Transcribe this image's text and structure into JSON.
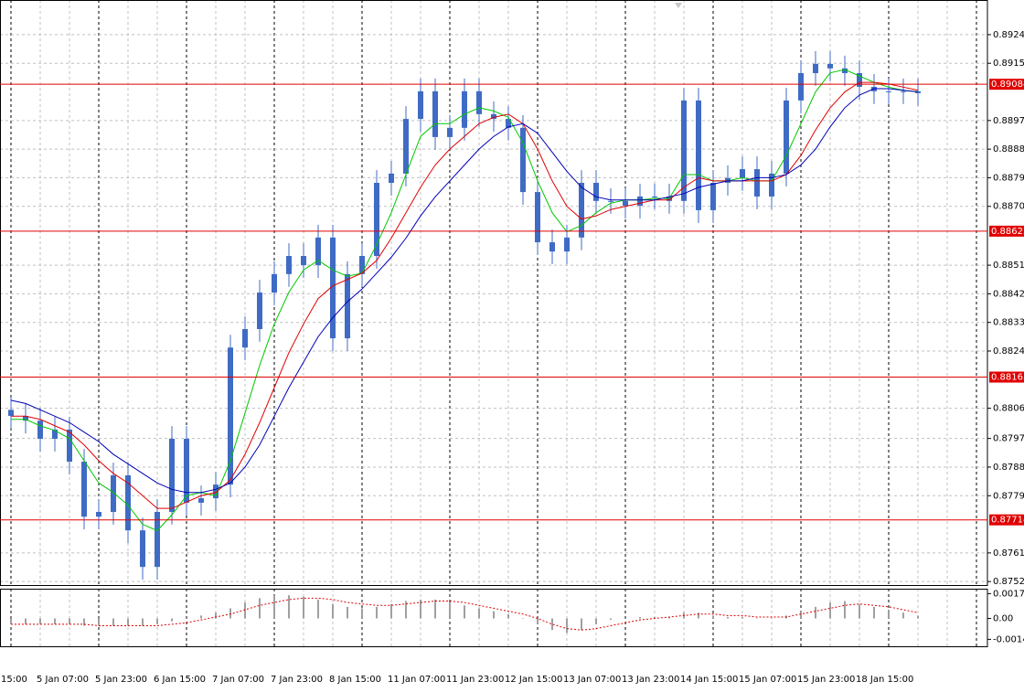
{
  "chart_data": {
    "type": "candlestick",
    "categories": [
      "15:00",
      null,
      null,
      null,
      "5 Jan 07:00",
      null,
      null,
      null,
      "5 Jan 23:00",
      null,
      null,
      null,
      "6 Jan 15:00",
      null,
      null,
      null,
      "7 Jan 07:00",
      null,
      null,
      null,
      "7 Jan 23:00",
      null,
      null,
      null,
      "8 Jan 15:00",
      null,
      null,
      null,
      "11 Jan 07:00",
      null,
      null,
      null,
      "11 Jan 23:00",
      null,
      null,
      null,
      "12 Jan 15:00",
      null,
      null,
      null,
      "13 Jan 07:00",
      null,
      null,
      null,
      "13 Jan 23:00",
      null,
      null,
      null,
      "14 Jan 15:00",
      null,
      null,
      null,
      "15 Jan 07:00",
      null,
      null,
      null,
      "15 Jan 23:00",
      null,
      null,
      null,
      "18 Jan 15:00",
      null,
      null,
      null,
      null
    ],
    "open": [
      null,
      null,
      0.8806,
      0.88041,
      0.88026,
      0.87969,
      0.87998,
      0.87897,
      0.87724,
      0.87739,
      0.87854,
      0.87681,
      0.87566,
      0.87739,
      0.87969,
      0.87768,
      0.87782,
      0.87825,
      0.88256,
      0.88314,
      0.88429,
      0.88487,
      0.88544,
      0.88515,
      0.88602,
      0.88285,
      0.88487,
      0.88544,
      0.88774,
      0.88803,
      0.88975,
      0.89062,
      0.88918,
      0.88947,
      0.89062,
      0.8899,
      0.88975,
      0.88947,
      0.88745,
      0.88587,
      0.88558,
      0.88602,
      0.88774,
      0.88717,
      0.88717,
      0.88702,
      0.88731,
      0.88731,
      0.88717,
      0.89033,
      0.88688,
      0.88774,
      0.88789,
      0.88817,
      0.88731,
      0.88803,
      0.89033,
      0.89119,
      0.89148,
      0.89134,
      0.89119,
      0.89076,
      0.89062,
      0.89062,
      0.89062
    ],
    "high": [
      null,
      null,
      0.881,
      0.88081,
      0.88066,
      0.88038,
      0.88038,
      0.87937,
      0.87779,
      0.87894,
      0.87894,
      0.87721,
      0.87779,
      0.88009,
      0.88009,
      0.87822,
      0.87865,
      0.88296,
      0.88354,
      0.88469,
      0.88527,
      0.88584,
      0.88584,
      0.88642,
      0.88642,
      0.88527,
      0.88584,
      0.88814,
      0.88843,
      0.89015,
      0.89102,
      0.89102,
      0.88987,
      0.89102,
      0.89102,
      0.8903,
      0.89015,
      0.88987,
      0.88785,
      0.88627,
      0.88642,
      0.88814,
      0.88814,
      0.88757,
      0.88757,
      0.88771,
      0.88771,
      0.88771,
      0.89073,
      0.89073,
      0.88814,
      0.88829,
      0.88857,
      0.88857,
      0.88843,
      0.89073,
      0.89159,
      0.89188,
      0.89188,
      0.89174,
      0.89159,
      0.89116,
      0.89102,
      0.89102,
      0.89102
    ],
    "low": [
      null,
      null,
      0.88001,
      0.87986,
      0.87929,
      0.87929,
      0.87857,
      0.87684,
      0.87684,
      0.87699,
      0.87641,
      0.87526,
      0.87526,
      0.87699,
      0.87728,
      0.87728,
      0.87742,
      0.87785,
      0.88216,
      0.88274,
      0.88389,
      0.88447,
      0.88475,
      0.88475,
      0.88245,
      0.88245,
      0.88447,
      0.88504,
      0.88734,
      0.88763,
      0.88935,
      0.88878,
      0.88878,
      0.88907,
      0.8895,
      0.88935,
      0.88907,
      0.88705,
      0.88547,
      0.88518,
      0.88518,
      0.88562,
      0.88677,
      0.88677,
      0.88662,
      0.88662,
      0.88691,
      0.88677,
      0.88677,
      0.88648,
      0.88648,
      0.88734,
      0.88749,
      0.88691,
      0.88691,
      0.88763,
      0.88993,
      0.89079,
      0.89094,
      0.89079,
      0.89036,
      0.89022,
      0.89022,
      0.89022,
      0.89016
    ],
    "close": [
      null,
      null,
      0.88041,
      0.88026,
      0.87969,
      0.87998,
      0.87897,
      0.87724,
      0.87739,
      0.87854,
      0.87681,
      0.87566,
      0.87739,
      0.87969,
      0.87768,
      0.87782,
      0.87825,
      0.88256,
      0.88314,
      0.88429,
      0.88487,
      0.88544,
      0.88515,
      0.88602,
      0.88285,
      0.88487,
      0.88544,
      0.88774,
      0.88803,
      0.88975,
      0.89062,
      0.88918,
      0.88947,
      0.89062,
      0.8899,
      0.88975,
      0.88947,
      0.88745,
      0.88587,
      0.88558,
      0.88602,
      0.88774,
      0.88717,
      0.88717,
      0.88702,
      0.88731,
      0.88731,
      0.88717,
      0.89033,
      0.88688,
      0.88774,
      0.88789,
      0.88817,
      0.88731,
      0.88803,
      0.89033,
      0.89119,
      0.89148,
      0.89134,
      0.89119,
      0.89076,
      0.89062,
      0.89062,
      0.89062,
      0.89056
    ],
    "color": "#3f6bc4",
    "moving_averages": [
      {
        "color": "#00c800",
        "values": [
          null,
          null,
          0.8803,
          0.8803,
          0.8801,
          0.87995,
          0.8797,
          0.879,
          0.8783,
          0.878,
          0.8776,
          0.877,
          0.8768,
          0.8773,
          0.8779,
          0.878,
          0.8779,
          0.879,
          0.8805,
          0.882,
          0.8833,
          0.8843,
          0.885,
          0.8853,
          0.885,
          0.8848,
          0.8849,
          0.8858,
          0.8868,
          0.888,
          0.8892,
          0.8896,
          0.8896,
          0.8899,
          0.8901,
          0.89,
          0.8898,
          0.889,
          0.8878,
          0.8868,
          0.8862,
          0.8864,
          0.8868,
          0.8871,
          0.8872,
          0.8872,
          0.88725,
          0.88725,
          0.888,
          0.888,
          0.8878,
          0.8878,
          0.8879,
          0.8878,
          0.8878,
          0.8886,
          0.8896,
          0.8906,
          0.8912,
          0.8913,
          0.8911,
          0.8909,
          0.89075,
          0.89065,
          0.8906
        ]
      },
      {
        "color": "#e00000",
        "values": [
          null,
          null,
          0.8804,
          0.8804,
          0.8803,
          0.8801,
          0.8799,
          0.8795,
          0.879,
          0.8786,
          0.8783,
          0.8779,
          0.8775,
          0.8775,
          0.8777,
          0.8779,
          0.878,
          0.8784,
          0.8792,
          0.8802,
          0.8813,
          0.8824,
          0.8833,
          0.8841,
          0.8845,
          0.8847,
          0.8849,
          0.8853,
          0.886,
          0.8868,
          0.8876,
          0.8883,
          0.8888,
          0.8892,
          0.8896,
          0.8898,
          0.8899,
          0.8896,
          0.8888,
          0.8878,
          0.887,
          0.8866,
          0.8867,
          0.8869,
          0.887,
          0.8871,
          0.8872,
          0.8872,
          0.8876,
          0.8879,
          0.8878,
          0.8878,
          0.8878,
          0.8878,
          0.8878,
          0.888,
          0.8886,
          0.8894,
          0.8901,
          0.8906,
          0.8909,
          0.8909,
          0.89085,
          0.89075,
          0.89065
        ]
      },
      {
        "color": "#0000b4",
        "values": [
          null,
          null,
          0.8809,
          0.8808,
          0.8806,
          0.8804,
          0.8802,
          0.8799,
          0.8796,
          0.8792,
          0.8789,
          0.8786,
          0.8783,
          0.8781,
          0.878,
          0.878,
          0.8781,
          0.8783,
          0.8788,
          0.8795,
          0.8804,
          0.8813,
          0.8821,
          0.8829,
          0.8835,
          0.884,
          0.8844,
          0.8849,
          0.8854,
          0.886,
          0.8867,
          0.8873,
          0.8878,
          0.8883,
          0.8888,
          0.8892,
          0.8895,
          0.8896,
          0.8893,
          0.8887,
          0.8881,
          0.8876,
          0.8873,
          0.8872,
          0.8872,
          0.8872,
          0.8872,
          0.8873,
          0.8874,
          0.8876,
          0.8877,
          0.8878,
          0.8878,
          0.8879,
          0.8879,
          0.888,
          0.8883,
          0.8888,
          0.8895,
          0.8901,
          0.8905,
          0.8907,
          0.8907,
          0.89065,
          0.8906
        ]
      }
    ],
    "levels": [
      {
        "value": 0.89084,
        "color": "#e00000"
      },
      {
        "value": 0.88622,
        "color": "#e00000"
      },
      {
        "value": 0.88163,
        "color": "#e00000"
      },
      {
        "value": 0.87714,
        "color": "#e00000"
      }
    ],
    "ylim": [
      0.87509,
      0.89349
    ],
    "yticks": [
      {
        "value": 0.8924,
        "label": "0.89240"
      },
      {
        "value": 0.8915,
        "label": "0.89150"
      },
      {
        "value": 0.8897,
        "label": "0.88970"
      },
      {
        "value": 0.8888,
        "label": "0.88880"
      },
      {
        "value": 0.8879,
        "label": "0.88790"
      },
      {
        "value": 0.887,
        "label": "0.88700"
      },
      0.88515,
      0.88425,
      0.88335,
      0.88245,
      0.88065,
      {
        "value": 0.8797,
        "label": "0.87970"
      },
      {
        "value": 0.8788,
        "label": "0.87880"
      },
      {
        "value": 0.8779,
        "label": "0.87790"
      },
      {
        "value": 0.8761,
        "label": "0.87610"
      },
      {
        "value": 0.8752,
        "label": "0.87520"
      }
    ],
    "grid": true,
    "oscillator": {
      "histogram": [
        null,
        null,
        -0.0004,
        -0.0004,
        -0.0004,
        -0.0004,
        -0.0004,
        -0.0005,
        -0.0005,
        -0.0005,
        -0.0005,
        -0.0005,
        -0.0004,
        -0.0002,
        0,
        0.0002,
        0.0004,
        0.0007,
        0.0011,
        0.0014,
        0.0016,
        0.0016,
        0.0015,
        0.0013,
        0.001,
        0.0008,
        0.0007,
        0.0008,
        0.001,
        0.0012,
        0.0013,
        0.0013,
        0.0011,
        0.0009,
        0.0007,
        0.0005,
        0.0003,
        0,
        -0.0004,
        -0.0008,
        -0.001,
        -0.0008,
        -0.0004,
        -0.0001,
        0,
        0.0001,
        0.0001,
        0.0001,
        0.0004,
        0.0004,
        0.0002,
        0.0001,
        0.0001,
        0,
        0,
        0.0002,
        0.0005,
        0.0008,
        0.0011,
        0.0012,
        0.001,
        0.0008,
        0.0006,
        0.0004,
        0.0002
      ],
      "histogram_color": "#a0a0a0",
      "signal": [
        null,
        null,
        -0.0004,
        -0.0004,
        -0.0004,
        -0.0004,
        -0.0004,
        -0.0004,
        -0.0005,
        -0.0005,
        -0.0005,
        -0.0005,
        -0.0005,
        -0.0004,
        -0.0003,
        -0.0001,
        0.0001,
        0.0003,
        0.0006,
        0.0009,
        0.0011,
        0.0013,
        0.0014,
        0.0014,
        0.0013,
        0.0011,
        0.001,
        0.0009,
        0.0009,
        0.001,
        0.0011,
        0.0012,
        0.0012,
        0.0011,
        0.0009,
        0.0007,
        0.0005,
        0.0003,
        0,
        -0.0004,
        -0.0007,
        -0.0008,
        -0.0007,
        -0.0005,
        -0.0003,
        -0.0001,
        0,
        0.0001,
        0.0002,
        0.0003,
        0.0003,
        0.0002,
        0.0002,
        0.0001,
        0.0001,
        0.0001,
        0.0003,
        0.0005,
        0.0007,
        0.0009,
        0.001,
        0.0009,
        0.0008,
        0.0006,
        0.0004
      ],
      "signal_color": "#e00000",
      "ylim": [
        -0.00192,
        0.00205
      ],
      "yticks": [
        0.001708,
        {
          "value": 0,
          "label": "0.00"
        },
        -0.00144
      ]
    }
  }
}
